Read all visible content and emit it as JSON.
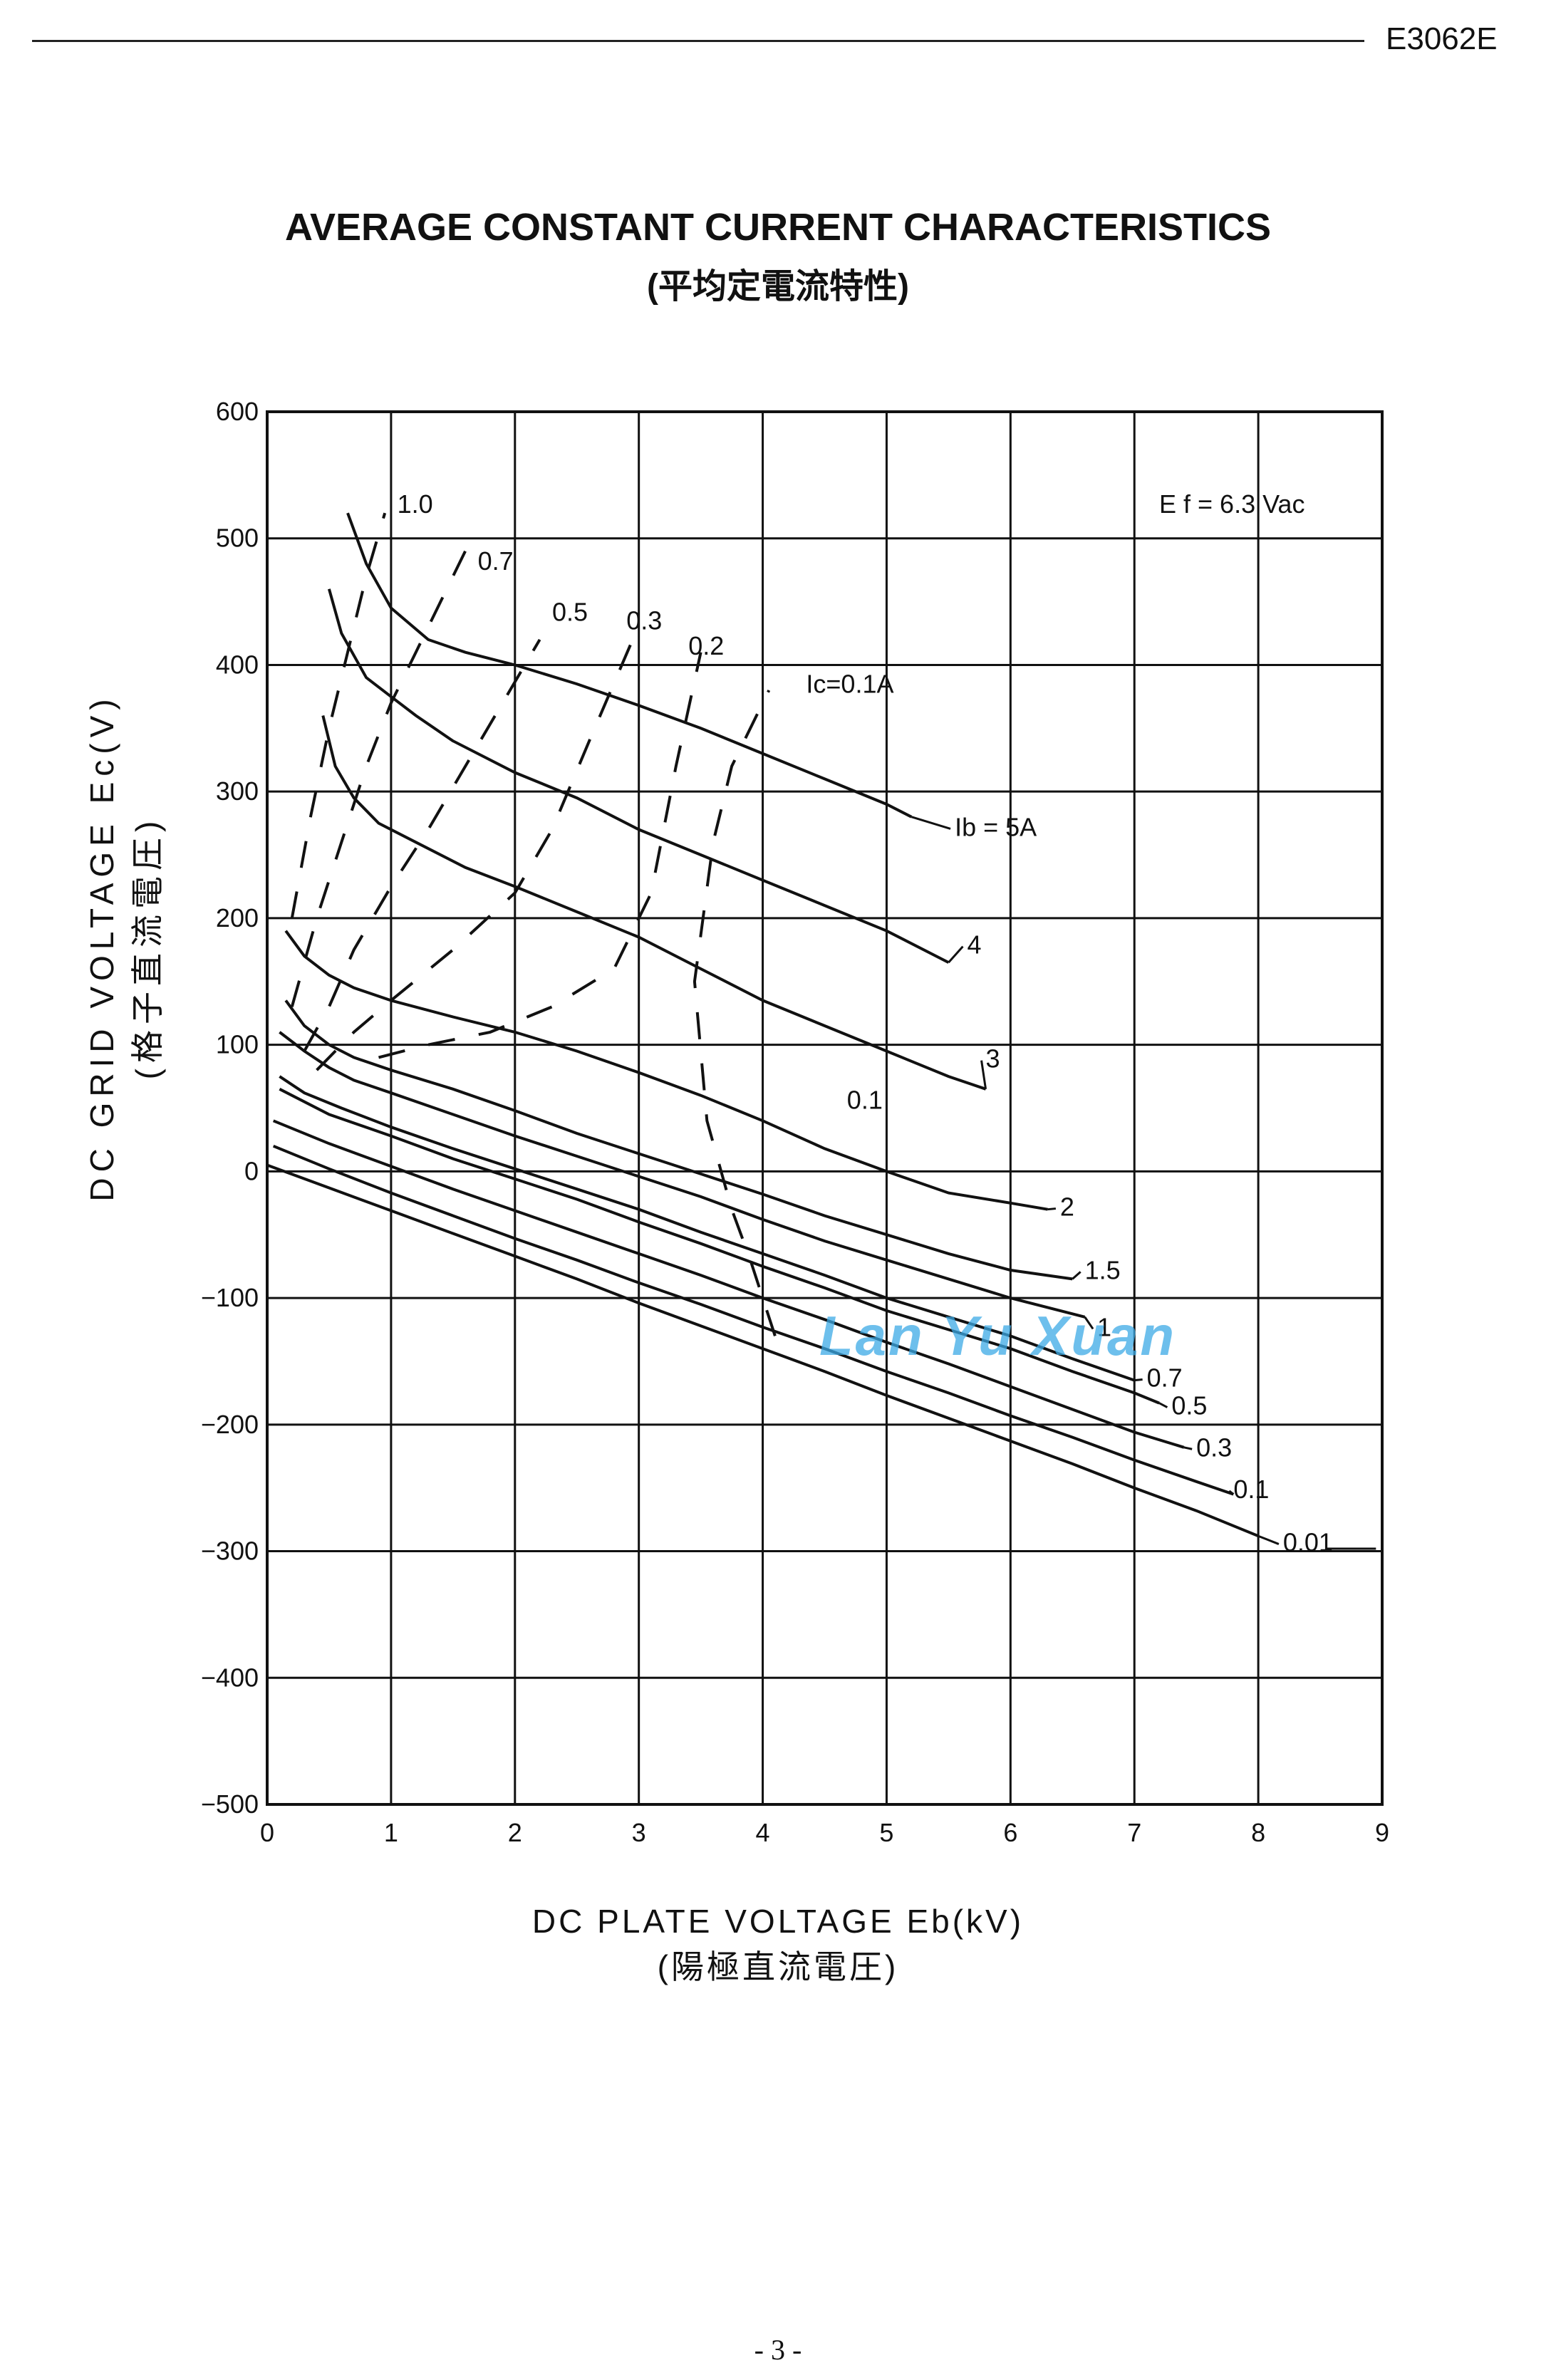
{
  "header": {
    "doc_code": "E3062E"
  },
  "title": "AVERAGE CONSTANT CURRENT CHARACTERISTICS",
  "subtitle": "(平均定電流特性)",
  "watermark": "Lan Yu Xuan",
  "page_number": "- 3 -",
  "chart_data": {
    "type": "line",
    "xlabel": "DC PLATE VOLTAGE Eb(kV)\n(陽極直流電圧)",
    "ylabel": "DC GRID VOLTAGE Ec(V)\n(格子直流電圧)",
    "xlim": [
      0,
      9
    ],
    "ylim": [
      -500,
      600
    ],
    "xticks": [
      "0",
      "1",
      "2",
      "3",
      "4",
      "5",
      "6",
      "7",
      "8",
      "9"
    ],
    "yticks": [
      "600",
      "500",
      "400",
      "300",
      "200",
      "100",
      "0",
      "−100",
      "−200",
      "−300",
      "−400",
      "−500"
    ],
    "grid": true,
    "annotation": "E f = 6.3 Vac",
    "series_plate": [
      {
        "name": "Ib = 5A",
        "label_x": 5.55,
        "label_y": 265,
        "x": [
          0.65,
          0.8,
          1.0,
          1.3,
          1.6,
          2.0,
          2.5,
          3.0,
          3.5,
          4.0,
          4.5,
          5.0,
          5.2
        ],
        "y": [
          520,
          480,
          445,
          420,
          410,
          400,
          385,
          368,
          350,
          330,
          310,
          290,
          280
        ]
      },
      {
        "name": "4",
        "label_x": 5.65,
        "label_y": 172,
        "x": [
          0.5,
          0.6,
          0.8,
          1.0,
          1.2,
          1.5,
          2.0,
          2.5,
          3.0,
          3.5,
          4.0,
          4.5,
          5.0,
          5.5
        ],
        "y": [
          460,
          425,
          390,
          375,
          360,
          340,
          315,
          295,
          270,
          250,
          230,
          210,
          190,
          165
        ]
      },
      {
        "name": "3",
        "label_x": 5.8,
        "label_y": 82,
        "x": [
          0.45,
          0.55,
          0.7,
          0.9,
          1.2,
          1.6,
          2.0,
          2.5,
          3.0,
          3.5,
          4.0,
          4.5,
          5.0,
          5.5,
          5.8
        ],
        "y": [
          360,
          320,
          295,
          275,
          260,
          240,
          225,
          205,
          185,
          160,
          135,
          115,
          95,
          75,
          65
        ]
      },
      {
        "name": "2",
        "label_x": 6.4,
        "label_y": -35,
        "x": [
          0.15,
          0.3,
          0.5,
          0.7,
          1.0,
          1.5,
          2.0,
          2.5,
          3.0,
          3.5,
          4.0,
          4.5,
          5.0,
          5.5,
          6.0,
          6.3
        ],
        "y": [
          190,
          170,
          155,
          145,
          135,
          122,
          110,
          95,
          78,
          60,
          40,
          18,
          0,
          -17,
          -25,
          -30
        ]
      },
      {
        "name": "1.5",
        "label_x": 6.6,
        "label_y": -85,
        "x": [
          0.15,
          0.3,
          0.5,
          0.7,
          1.0,
          1.5,
          2.0,
          2.5,
          3.0,
          3.5,
          4.0,
          4.5,
          5.0,
          5.5,
          6.0,
          6.5
        ],
        "y": [
          135,
          115,
          100,
          90,
          80,
          65,
          48,
          30,
          14,
          -2,
          -18,
          -35,
          -50,
          -65,
          -78,
          -85
        ]
      },
      {
        "name": "1",
        "label_x": 6.7,
        "label_y": -130,
        "x": [
          0.1,
          0.3,
          0.5,
          0.7,
          1.0,
          1.5,
          2.0,
          2.5,
          3.0,
          3.5,
          4.0,
          4.5,
          5.0,
          5.5,
          6.0,
          6.6
        ],
        "y": [
          110,
          95,
          82,
          72,
          62,
          45,
          28,
          12,
          -4,
          -20,
          -38,
          -55,
          -70,
          -85,
          -100,
          -115
        ]
      },
      {
        "name": "0.7",
        "label_x": 7.1,
        "label_y": -170,
        "x": [
          0.1,
          0.3,
          0.6,
          1.0,
          1.5,
          2.0,
          2.5,
          3.0,
          3.5,
          4.0,
          4.5,
          5.0,
          5.5,
          6.0,
          6.5,
          7.0
        ],
        "y": [
          75,
          62,
          50,
          35,
          18,
          2,
          -14,
          -30,
          -48,
          -65,
          -82,
          -100,
          -115,
          -130,
          -148,
          -165
        ]
      },
      {
        "name": "0.5",
        "label_x": 7.3,
        "label_y": -192,
        "x": [
          0.1,
          0.5,
          1.0,
          1.5,
          2.0,
          2.5,
          3.0,
          3.5,
          4.0,
          4.5,
          5.0,
          5.5,
          6.0,
          6.5,
          7.0,
          7.2
        ],
        "y": [
          65,
          45,
          28,
          10,
          -6,
          -22,
          -40,
          -57,
          -75,
          -92,
          -110,
          -125,
          -140,
          -158,
          -175,
          -183
        ]
      },
      {
        "name": "0.3",
        "label_x": 7.5,
        "label_y": -225,
        "x": [
          0.05,
          0.5,
          1.0,
          1.5,
          2.0,
          2.5,
          3.0,
          3.5,
          4.0,
          4.5,
          5.0,
          5.5,
          6.0,
          6.5,
          7.0,
          7.4
        ],
        "y": [
          40,
          22,
          4,
          -14,
          -31,
          -48,
          -65,
          -82,
          -100,
          -117,
          -135,
          -152,
          -170,
          -188,
          -206,
          -218
        ]
      },
      {
        "name": "0.1",
        "label_x": 7.8,
        "label_y": -258,
        "x": [
          0.05,
          0.5,
          1.0,
          1.5,
          2.0,
          2.5,
          3.0,
          3.5,
          4.0,
          4.5,
          5.0,
          5.5,
          6.0,
          6.5,
          7.0,
          7.5,
          7.8
        ],
        "y": [
          20,
          2,
          -17,
          -35,
          -53,
          -70,
          -88,
          -105,
          -123,
          -140,
          -158,
          -175,
          -193,
          -210,
          -228,
          -245,
          -255
        ]
      },
      {
        "name": "0.01",
        "label_x": 8.2,
        "label_y": -300,
        "x": [
          0.0,
          0.5,
          1.0,
          1.5,
          2.0,
          2.5,
          3.0,
          3.5,
          4.0,
          4.5,
          5.0,
          5.5,
          6.0,
          6.5,
          7.0,
          7.5,
          8.0
        ],
        "y": [
          5,
          -13,
          -31,
          -49,
          -67,
          -85,
          -104,
          -122,
          -140,
          -158,
          -177,
          -195,
          -213,
          -231,
          -250,
          -268,
          -288
        ]
      }
    ],
    "series_grid": [
      {
        "name": "1.0",
        "label_x": 1.05,
        "label_y": 520,
        "x": [
          0.2,
          0.35,
          0.5,
          0.65,
          0.8,
          0.95
        ],
        "y": [
          200,
          280,
          350,
          410,
          470,
          520
        ]
      },
      {
        "name": "0.7",
        "label_x": 1.7,
        "label_y": 475,
        "x": [
          0.2,
          0.4,
          0.6,
          0.8,
          1.0,
          1.2,
          1.4,
          1.6
        ],
        "y": [
          130,
          200,
          260,
          320,
          370,
          410,
          450,
          490
        ]
      },
      {
        "name": "0.5",
        "label_x": 2.3,
        "label_y": 435,
        "x": [
          0.3,
          0.5,
          0.7,
          1.0,
          1.3,
          1.6,
          1.9,
          2.2
        ],
        "y": [
          95,
          130,
          175,
          225,
          270,
          320,
          370,
          420
        ]
      },
      {
        "name": "0.3",
        "label_x": 2.9,
        "label_y": 428,
        "x": [
          0.4,
          0.7,
          1.0,
          1.5,
          2.0,
          2.3,
          2.6,
          2.95
        ],
        "y": [
          80,
          110,
          135,
          175,
          220,
          270,
          340,
          420
        ]
      },
      {
        "name": "0.2",
        "label_x": 3.4,
        "label_y": 408,
        "x": [
          0.9,
          1.3,
          1.8,
          2.3,
          2.8,
          3.1,
          3.3,
          3.5
        ],
        "y": [
          90,
          100,
          110,
          130,
          160,
          220,
          320,
          410
        ]
      },
      {
        "name": "Ic=0.1A",
        "label_x": 4.35,
        "label_y": 378,
        "x": [
          4.1,
          3.9,
          3.75,
          3.55,
          3.45,
          3.6,
          3.75,
          4.05
        ],
        "y": [
          -130,
          -70,
          -30,
          40,
          150,
          260,
          320,
          380
        ]
      }
    ],
    "grid_extra_labels": [
      {
        "text": "0.1",
        "x": 4.45,
        "y": 72
      }
    ]
  }
}
